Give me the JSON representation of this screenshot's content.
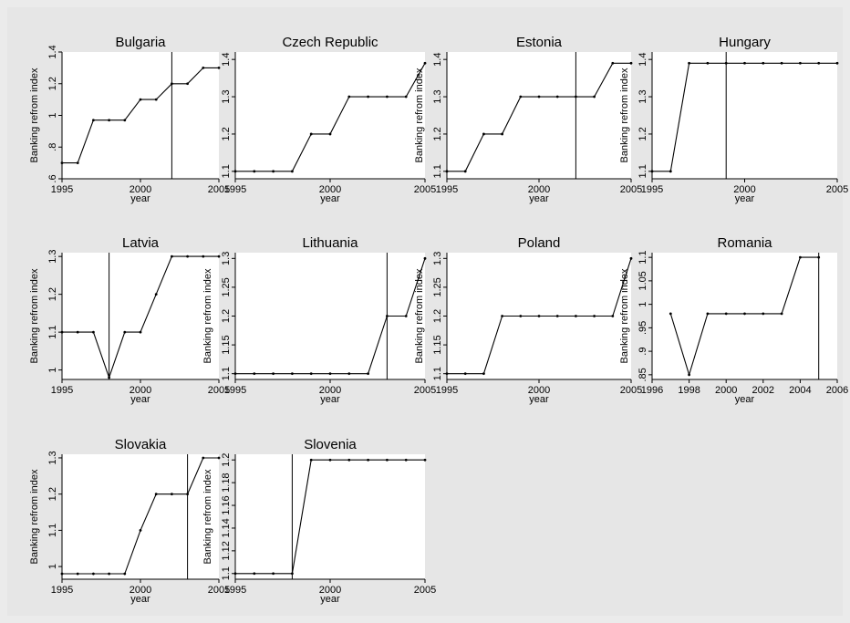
{
  "chart_data": [
    {
      "type": "line",
      "title": "Bulgaria",
      "xlabel": "year",
      "ylabel": "Banking refrom index",
      "xlim": [
        1995,
        2005
      ],
      "ylim": [
        0.6,
        1.4
      ],
      "xticks": [
        1995,
        2000,
        2005
      ],
      "xtick_labels": [
        "1995",
        "2000",
        "2005"
      ],
      "yticks": [
        0.6,
        0.8,
        1.0,
        1.2,
        1.4
      ],
      "ytick_labels": [
        ".6",
        ".8",
        "1",
        "1.2",
        "1.4"
      ],
      "x": [
        1995,
        1996,
        1997,
        1998,
        1999,
        2000,
        2001,
        2002,
        2003,
        2004,
        2005
      ],
      "y": [
        0.7,
        0.7,
        0.97,
        0.97,
        0.97,
        1.1,
        1.1,
        1.2,
        1.2,
        1.3,
        1.3
      ],
      "vline": 2002
    },
    {
      "type": "line",
      "title": "Czech Republic",
      "xlabel": "year",
      "ylabel": "",
      "xlim": [
        1995,
        2005
      ],
      "ylim": [
        1.08,
        1.42
      ],
      "xticks": [
        1995,
        2000,
        2005
      ],
      "xtick_labels": [
        "1995",
        "2000",
        "2005"
      ],
      "yticks": [
        1.1,
        1.2,
        1.3,
        1.4
      ],
      "ytick_labels": [
        "1.1",
        "1.2",
        "1.3",
        "1.4"
      ],
      "x": [
        1995,
        1996,
        1997,
        1998,
        1999,
        2000,
        2001,
        2002,
        2003,
        2004,
        2005
      ],
      "y": [
        1.1,
        1.1,
        1.1,
        1.1,
        1.2,
        1.2,
        1.3,
        1.3,
        1.3,
        1.3,
        1.39
      ],
      "vline": null
    },
    {
      "type": "line",
      "title": "Estonia",
      "xlabel": "year",
      "ylabel": "Banking refrom index",
      "xlim": [
        1995,
        2005
      ],
      "ylim": [
        1.08,
        1.42
      ],
      "xticks": [
        1995,
        2000,
        2005
      ],
      "xtick_labels": [
        "1995",
        "2000",
        "2005"
      ],
      "yticks": [
        1.1,
        1.2,
        1.3,
        1.4
      ],
      "ytick_labels": [
        "1.1",
        "1.2",
        "1.3",
        "1.4"
      ],
      "x": [
        1995,
        1996,
        1997,
        1998,
        1999,
        2000,
        2001,
        2002,
        2003,
        2004,
        2005
      ],
      "y": [
        1.1,
        1.1,
        1.2,
        1.2,
        1.3,
        1.3,
        1.3,
        1.3,
        1.3,
        1.39,
        1.39
      ],
      "vline": 2002
    },
    {
      "type": "line",
      "title": "Hungary",
      "xlabel": "year",
      "ylabel": "Banking refrom index",
      "xlim": [
        1995,
        2005
      ],
      "ylim": [
        1.08,
        1.42
      ],
      "xticks": [
        1995,
        2000,
        2005
      ],
      "xtick_labels": [
        "1995",
        "2000",
        "2005"
      ],
      "yticks": [
        1.1,
        1.2,
        1.3,
        1.4
      ],
      "ytick_labels": [
        "1.1",
        "1.2",
        "1.3",
        "1.4"
      ],
      "x": [
        1995,
        1996,
        1997,
        1998,
        1999,
        2000,
        2001,
        2002,
        2003,
        2004,
        2005
      ],
      "y": [
        1.1,
        1.1,
        1.39,
        1.39,
        1.39,
        1.39,
        1.39,
        1.39,
        1.39,
        1.39,
        1.39
      ],
      "vline": 1999
    },
    {
      "type": "line",
      "title": "Latvia",
      "xlabel": "year",
      "ylabel": "Banking refrom index",
      "xlim": [
        1995,
        2005
      ],
      "ylim": [
        0.975,
        1.31
      ],
      "xticks": [
        1995,
        2000,
        2005
      ],
      "xtick_labels": [
        "1995",
        "2000",
        "2005"
      ],
      "yticks": [
        1.0,
        1.1,
        1.2,
        1.3
      ],
      "ytick_labels": [
        "1",
        "1.1",
        "1.2",
        "1.3"
      ],
      "x": [
        1995,
        1996,
        1997,
        1998,
        1999,
        2000,
        2001,
        2002,
        2003,
        2004,
        2005
      ],
      "y": [
        1.1,
        1.1,
        1.1,
        0.98,
        1.1,
        1.1,
        1.2,
        1.3,
        1.3,
        1.3,
        1.3
      ],
      "vline": 1998
    },
    {
      "type": "line",
      "title": "Lithuania",
      "xlabel": "year",
      "ylabel": "Banking refrom index",
      "xlim": [
        1995,
        2005
      ],
      "ylim": [
        1.09,
        1.31
      ],
      "xticks": [
        1995,
        2000,
        2005
      ],
      "xtick_labels": [
        "1995",
        "2000",
        "2005"
      ],
      "yticks": [
        1.1,
        1.15,
        1.2,
        1.25,
        1.3
      ],
      "ytick_labels": [
        "1.1",
        "1.15",
        "1.2",
        "1.25",
        "1.3"
      ],
      "x": [
        1995,
        1996,
        1997,
        1998,
        1999,
        2000,
        2001,
        2002,
        2003,
        2004,
        2005
      ],
      "y": [
        1.1,
        1.1,
        1.1,
        1.1,
        1.1,
        1.1,
        1.1,
        1.1,
        1.2,
        1.2,
        1.3
      ],
      "vline": 2003
    },
    {
      "type": "line",
      "title": "Poland",
      "xlabel": "year",
      "ylabel": "Banking refrom index",
      "xlim": [
        1995,
        2005
      ],
      "ylim": [
        1.09,
        1.31
      ],
      "xticks": [
        1995,
        2000,
        2005
      ],
      "xtick_labels": [
        "1995",
        "2000",
        "2005"
      ],
      "yticks": [
        1.1,
        1.15,
        1.2,
        1.25,
        1.3
      ],
      "ytick_labels": [
        "1.1",
        "1.15",
        "1.2",
        "1.25",
        "1.3"
      ],
      "x": [
        1995,
        1996,
        1997,
        1998,
        1999,
        2000,
        2001,
        2002,
        2003,
        2004,
        2005
      ],
      "y": [
        1.1,
        1.1,
        1.1,
        1.2,
        1.2,
        1.2,
        1.2,
        1.2,
        1.2,
        1.2,
        1.3
      ],
      "vline": null
    },
    {
      "type": "line",
      "title": "Romania",
      "xlabel": "year",
      "ylabel": "Banking refrom index",
      "xlim": [
        1996,
        2006
      ],
      "ylim": [
        0.84,
        1.11
      ],
      "xticks": [
        1996,
        1998,
        2000,
        2002,
        2004,
        2006
      ],
      "xtick_labels": [
        "1996",
        "1998",
        "2000",
        "2002",
        "2004",
        "2006"
      ],
      "yticks": [
        0.85,
        0.9,
        0.95,
        1.0,
        1.05,
        1.1
      ],
      "ytick_labels": [
        ".85",
        ".9",
        ".95",
        "1",
        "1.05",
        "1.1"
      ],
      "x": [
        1997,
        1998,
        1999,
        2000,
        2001,
        2002,
        2003,
        2004,
        2005
      ],
      "y": [
        0.98,
        0.85,
        0.98,
        0.98,
        0.98,
        0.98,
        0.98,
        1.1,
        1.1
      ],
      "vline": 2005
    },
    {
      "type": "line",
      "title": "Slovakia",
      "xlabel": "year",
      "ylabel": "Banking refrom index",
      "xlim": [
        1995,
        2005
      ],
      "ylim": [
        0.965,
        1.31
      ],
      "xticks": [
        1995,
        2000,
        2005
      ],
      "xtick_labels": [
        "1995",
        "2000",
        "2005"
      ],
      "yticks": [
        1.0,
        1.1,
        1.2,
        1.3
      ],
      "ytick_labels": [
        "1",
        "1.1",
        "1.2",
        "1.3"
      ],
      "x": [
        1995,
        1996,
        1997,
        1998,
        1999,
        2000,
        2001,
        2002,
        2003,
        2004,
        2005
      ],
      "y": [
        0.98,
        0.98,
        0.98,
        0.98,
        0.98,
        1.1,
        1.2,
        1.2,
        1.2,
        1.3,
        1.3
      ],
      "vline": 2003
    },
    {
      "type": "line",
      "title": "Slovenia",
      "xlabel": "year",
      "ylabel": "Banking refrom index",
      "xlim": [
        1995,
        2005
      ],
      "ylim": [
        1.095,
        1.205
      ],
      "xticks": [
        1995,
        2000,
        2005
      ],
      "xtick_labels": [
        "1995",
        "2000",
        "2005"
      ],
      "yticks": [
        1.1,
        1.12,
        1.14,
        1.16,
        1.18,
        1.2
      ],
      "ytick_labels": [
        "1.1",
        "1.12",
        "1.14",
        "1.16",
        "1.18",
        "1.2"
      ],
      "x": [
        1995,
        1996,
        1997,
        1998,
        1999,
        2000,
        2001,
        2002,
        2003,
        2004,
        2005
      ],
      "y": [
        1.1,
        1.1,
        1.1,
        1.1,
        1.2,
        1.2,
        1.2,
        1.2,
        1.2,
        1.2,
        1.2
      ],
      "vline": 1998
    }
  ]
}
